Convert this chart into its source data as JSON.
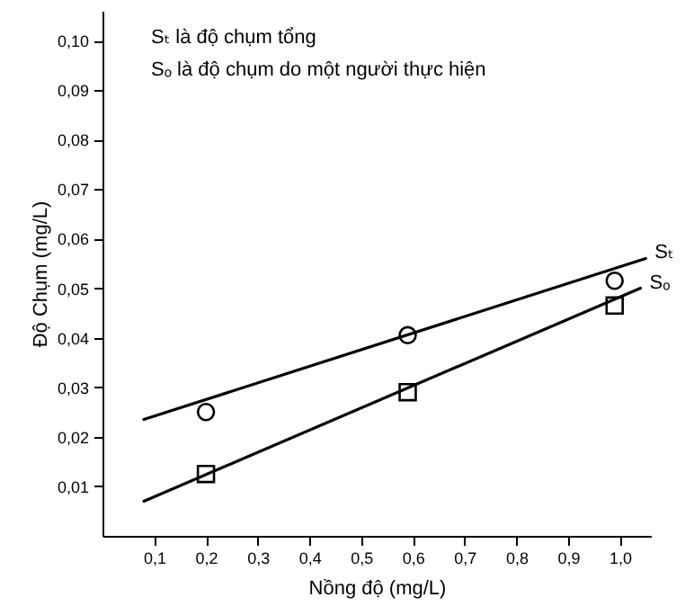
{
  "chart_data": {
    "type": "scatter",
    "xlabel": "Nồng độ (mg/L)",
    "ylabel": "Độ Chụm (mg/L)",
    "annotations": [
      "Sₜ là độ chụm tổng",
      "Sₒ là độ chụm do một người thực hiện"
    ],
    "xlim": [
      0,
      1.06
    ],
    "ylim": [
      0,
      0.106
    ],
    "xticks": [
      {
        "value": 0.1,
        "label": "0,1"
      },
      {
        "value": 0.2,
        "label": "0,2"
      },
      {
        "value": 0.3,
        "label": "0,3"
      },
      {
        "value": 0.4,
        "label": "0,4"
      },
      {
        "value": 0.5,
        "label": "0,5"
      },
      {
        "value": 0.6,
        "label": "0,6"
      },
      {
        "value": 0.7,
        "label": "0,7"
      },
      {
        "value": 0.8,
        "label": "0,8"
      },
      {
        "value": 0.9,
        "label": "0,9"
      },
      {
        "value": 1.0,
        "label": "1,0"
      }
    ],
    "yticks": [
      {
        "value": 0.01,
        "label": "0,01"
      },
      {
        "value": 0.02,
        "label": "0,02"
      },
      {
        "value": 0.03,
        "label": "0,03"
      },
      {
        "value": 0.04,
        "label": "0,04"
      },
      {
        "value": 0.05,
        "label": "0,05"
      },
      {
        "value": 0.06,
        "label": "0,06"
      },
      {
        "value": 0.07,
        "label": "0,07"
      },
      {
        "value": 0.08,
        "label": "0,08"
      },
      {
        "value": 0.09,
        "label": "0,09"
      },
      {
        "value": 0.1,
        "label": "0,10"
      }
    ],
    "series": [
      {
        "type": "line",
        "name": "Sₜ",
        "color": "#000000",
        "line_style": "solid",
        "x": [
          0.08,
          1.05
        ],
        "values": [
          0.0235,
          0.056
        ]
      },
      {
        "type": "line",
        "name": "Sₒ",
        "color": "#000000",
        "line_style": "solid",
        "x": [
          0.08,
          1.04
        ],
        "values": [
          0.007,
          0.05
        ]
      },
      {
        "marker": "circle",
        "color": "#000000",
        "x": [
          0.2,
          0.59,
          0.99
        ],
        "values": [
          0.025,
          0.0405,
          0.0515
        ]
      },
      {
        "marker": "square",
        "color": "#000000",
        "x": [
          0.2,
          0.59,
          0.99
        ],
        "values": [
          0.0125,
          0.029,
          0.0465
        ]
      }
    ]
  }
}
